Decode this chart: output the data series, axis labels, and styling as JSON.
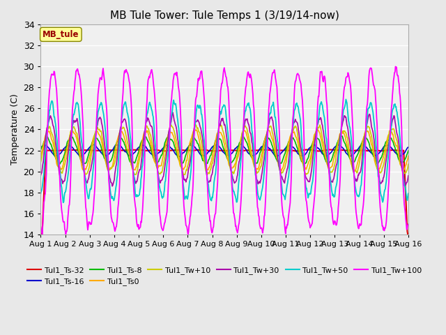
{
  "title": "MB Tule Tower: Tule Temps 1 (3/19/14-now)",
  "ylabel": "Temperature (C)",
  "ylim": [
    14,
    34
  ],
  "yticks": [
    14,
    16,
    18,
    20,
    22,
    24,
    26,
    28,
    30,
    32,
    34
  ],
  "x_labels": [
    "Aug 1",
    "Aug 2",
    "Aug 3",
    "Aug 4",
    "Aug 5",
    "Aug 6",
    "Aug 7",
    "Aug 8",
    "Aug 9",
    "Aug 10",
    "Aug 11",
    "Aug 12",
    "Aug 13",
    "Aug 14",
    "Aug 15",
    "Aug 16"
  ],
  "fig_bg_color": "#e8e8e8",
  "plot_bg_color": "#f0f0f0",
  "grid_color": "#ffffff",
  "series_colors": {
    "Tul1_Ts-32": "#dd0000",
    "Tul1_Ts-16": "#0000cc",
    "Tul1_Ts-8": "#00bb00",
    "Tul1_Ts0": "#ffaa00",
    "Tul1_Tw+10": "#cccc00",
    "Tul1_Tw+30": "#aa00aa",
    "Tul1_Tw+50": "#00cccc",
    "Tul1_Tw+100": "#ff00ff"
  },
  "legend_labels": [
    "Tul1_Ts-32",
    "Tul1_Ts-16",
    "Tul1_Ts-8",
    "Tul1_Ts0",
    "Tul1_Tw+10",
    "Tul1_Tw+30",
    "Tul1_Tw+50",
    "Tul1_Tw+100"
  ],
  "annotation_text": "MB_tule",
  "title_fontsize": 11
}
